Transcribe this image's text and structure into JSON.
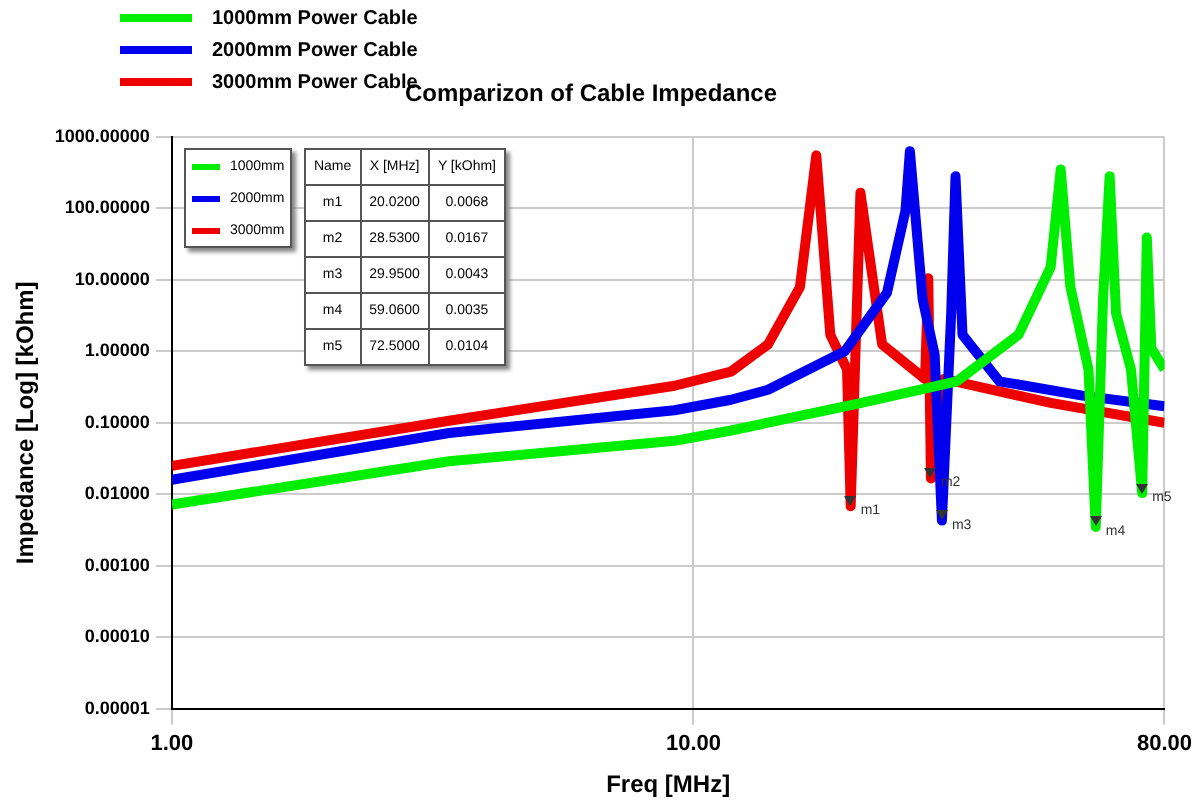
{
  "chart_data": {
    "type": "line",
    "title": "Comparizon of Cable Impedance",
    "xlabel": "Freq [MHz]",
    "ylabel": "Impedance [Log] [kOhm]",
    "log": "xy",
    "grid": true,
    "legend": "top left",
    "marker": "none",
    "line_style": "solid",
    "xlim": [
      1,
      80
    ],
    "xticks": [
      {
        "value": 1,
        "label": "1.00"
      },
      {
        "value": 10,
        "label": "10.00"
      },
      {
        "value": 80,
        "label": "80.00"
      }
    ],
    "ylim": [
      1e-05,
      1000
    ],
    "yticks": [
      {
        "value": 1e-05,
        "label": "0.00001"
      },
      {
        "value": 0.0001,
        "label": "0.00010"
      },
      {
        "value": 0.001,
        "label": "0.00100"
      },
      {
        "value": 0.01,
        "label": "0.01000"
      },
      {
        "value": 0.1,
        "label": "0.10000"
      },
      {
        "value": 1,
        "label": "1.00000"
      },
      {
        "value": 10,
        "label": "10.00000"
      },
      {
        "value": 100,
        "label": "100.00000"
      },
      {
        "value": 1000,
        "label": "1000.00000"
      }
    ],
    "series": [
      {
        "name": "1000mm Power Cable",
        "color": "#00ee00",
        "x": [
          1,
          3.4,
          9.2,
          11.8,
          21,
          32,
          42,
          48.4,
          50.6,
          52.8,
          57.2,
          59.06,
          61,
          62.8,
          64.6,
          69,
          72.5,
          74,
          75.5,
          80
        ],
        "values": [
          0.0072,
          0.029,
          0.056,
          0.078,
          0.19,
          0.38,
          1.7,
          15,
          350,
          8,
          0.56,
          0.0035,
          5.4,
          280,
          3.4,
          0.56,
          0.0104,
          39,
          1.1,
          0.56
        ]
      },
      {
        "name": "2000mm Power Cable",
        "color": "#0000ee",
        "x": [
          1,
          3.4,
          9.2,
          11.8,
          13.9,
          19.5,
          23.5,
          25.5,
          26,
          27.5,
          29,
          29.95,
          31.2,
          31.8,
          32.8,
          38.6,
          55.7,
          80
        ],
        "values": [
          0.016,
          0.072,
          0.15,
          0.21,
          0.29,
          1.0,
          6.6,
          93,
          630,
          5.4,
          0.9,
          0.0043,
          3.4,
          280,
          1.7,
          0.38,
          0.24,
          0.17
        ]
      },
      {
        "name": "3000mm Power Cable",
        "color": "#ee0000",
        "x": [
          1,
          3.4,
          9.2,
          11.8,
          13.9,
          16,
          17.2,
          18.3,
          19.7,
          20.02,
          20.9,
          23,
          27.8,
          28.2,
          28.53,
          30.2,
          48.4,
          80
        ],
        "values": [
          0.025,
          0.107,
          0.33,
          0.52,
          1.25,
          7.9,
          550,
          1.7,
          0.56,
          0.0068,
          165,
          1.25,
          0.41,
          10.5,
          0.0167,
          0.41,
          0.19,
          0.1
        ]
      }
    ],
    "annotations": [
      {
        "text": "m1",
        "x": 20.02,
        "y": 0.0068
      },
      {
        "text": "m2",
        "x": 28.53,
        "y": 0.0167
      },
      {
        "text": "m3",
        "x": 29.95,
        "y": 0.0043
      },
      {
        "text": "m4",
        "x": 59.06,
        "y": 0.0035
      },
      {
        "text": "m5",
        "x": 72.5,
        "y": 0.0104
      },
      "1000mm",
      "2000mm",
      "3000mm",
      "Name",
      "X [MHz]",
      "Y [kOhm]",
      "m1",
      "20.0200",
      "0.0068",
      "m2",
      "28.5300",
      "0.0167",
      "m3",
      "29.9500",
      "0.0043",
      "m4",
      "59.0600",
      "0.0035",
      "m5",
      "72.5000",
      "0.0104"
    ]
  }
}
